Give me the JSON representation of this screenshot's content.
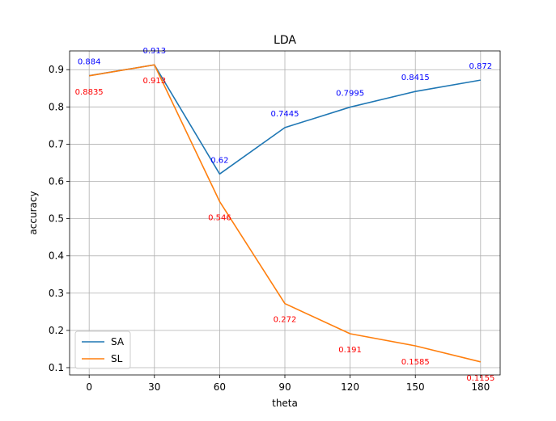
{
  "chart_data": {
    "type": "line",
    "title": "LDA",
    "xlabel": "theta",
    "ylabel": "accuracy",
    "x": [
      0,
      30,
      60,
      90,
      120,
      150,
      180
    ],
    "xticks": [
      0,
      30,
      60,
      90,
      120,
      150,
      180
    ],
    "yticks": [
      0.1,
      0.2,
      0.3,
      0.4,
      0.5,
      0.6,
      0.7,
      0.8,
      0.9
    ],
    "xlim": [
      -9,
      189
    ],
    "ylim": [
      0.0804,
      0.9504
    ],
    "grid": true,
    "legend_position": "lower-left",
    "series": [
      {
        "name": "SA",
        "color": "#1f77b4",
        "label_color": "#0000ff",
        "values": [
          0.884,
          0.913,
          0.62,
          0.7445,
          0.7995,
          0.8415,
          0.872
        ],
        "labels": [
          "0.884",
          "0.913",
          "0.62",
          "0.7445",
          "0.7995",
          "0.8415",
          "0.872"
        ]
      },
      {
        "name": "SL",
        "color": "#ff7f0e",
        "label_color": "#ff0000",
        "values": [
          0.8835,
          0.913,
          0.546,
          0.272,
          0.191,
          0.1585,
          0.1155
        ],
        "labels": [
          "0.8835",
          "0.913",
          "0.546",
          "0.272",
          "0.191",
          "0.1585",
          "0.1155"
        ]
      }
    ]
  }
}
